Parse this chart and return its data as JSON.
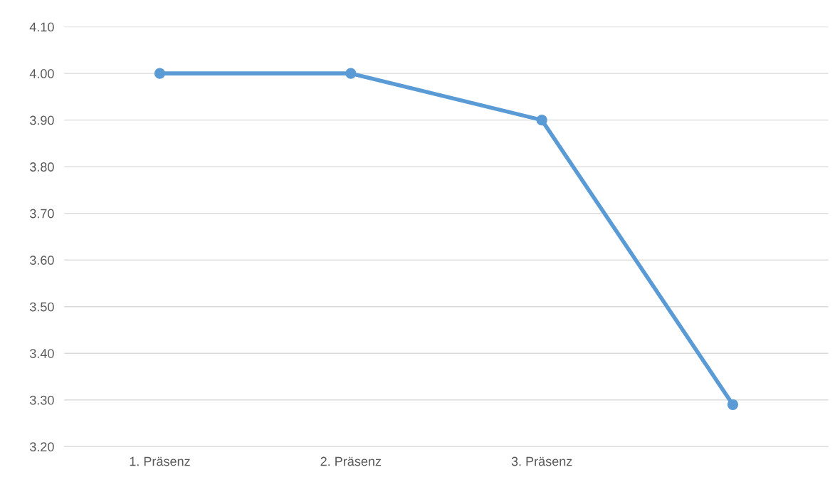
{
  "chart_data": {
    "type": "line",
    "categories": [
      "1. Präsenz",
      "2. Präsenz",
      "3. Präsenz",
      null
    ],
    "series": [
      {
        "color": "#5b9bd5",
        "values": [
          4.0,
          4.0,
          3.9,
          3.29
        ]
      }
    ],
    "ylim": [
      3.2,
      4.1
    ],
    "yticks": [
      {
        "value": 3.2,
        "label": "3.20"
      },
      {
        "value": 3.3,
        "label": "3.30"
      },
      {
        "value": 3.4,
        "label": "3.40"
      },
      {
        "value": 3.5,
        "label": "3.50"
      },
      {
        "value": 3.6,
        "label": "3.60"
      },
      {
        "value": 3.7,
        "label": "3.70"
      },
      {
        "value": 3.8,
        "label": "3.80"
      },
      {
        "value": 3.9,
        "label": "3.90"
      },
      {
        "value": 4.0,
        "label": "4.00"
      },
      {
        "value": 4.1,
        "label": "4.10"
      }
    ],
    "grid": "y",
    "marker": "circle",
    "line_style": "solid"
  }
}
